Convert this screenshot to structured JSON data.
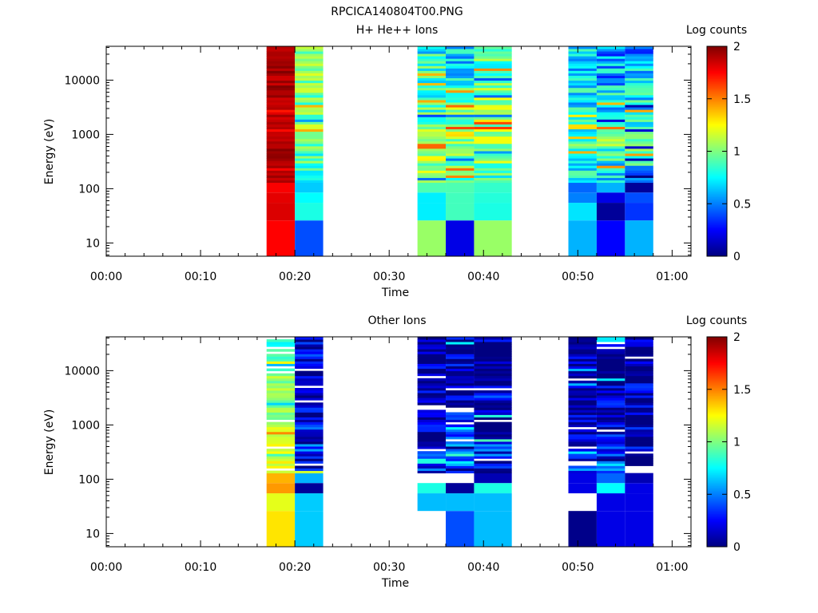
{
  "figure_title": "RPCICA140804T00.PNG",
  "chart_data": [
    {
      "type": "heatmap",
      "title": "H+ He++ Ions",
      "xlabel": "Time",
      "ylabel": "Energy (eV)",
      "y_scale": "log",
      "ylim": [
        5.7,
        42000
      ],
      "xlim_minutes": [
        0,
        62
      ],
      "x_tick_labels": [
        "00:00",
        "00:10",
        "00:20",
        "00:30",
        "00:40",
        "00:50",
        "01:00"
      ],
      "y_tick_labels": [
        "10",
        "100",
        "1000",
        "10000"
      ],
      "colorbar": {
        "label": "Log counts",
        "range": [
          0,
          2
        ],
        "tick_labels": [
          "0",
          "0.5",
          "1",
          "1.5",
          "2"
        ]
      },
      "columns": [
        {
          "t_start": "00:17",
          "t_end": "00:20",
          "low_bins": [
            [
              5.7,
              26,
              1.75
            ],
            [
              26,
              55,
              1.82
            ],
            [
              55,
              85,
              1.8
            ],
            [
              85,
              130,
              1.76
            ]
          ],
          "profile": [
            1.9,
            1.9,
            1.95,
            1.88,
            1.9,
            1.85,
            1.92,
            1.88,
            1.95,
            1.9
          ],
          "variation": 0.07
        },
        {
          "t_start": "00:20",
          "t_end": "00:23",
          "low_bins": [
            [
              5.7,
              26,
              0.4
            ],
            [
              26,
              55,
              0.8
            ],
            [
              55,
              85,
              0.75
            ],
            [
              85,
              130,
              0.65
            ]
          ],
          "profile": [
            0.6,
            0.9,
            0.9,
            0.95,
            1.0,
            0.95,
            1.0,
            1.05,
            1.0,
            0.95
          ],
          "variation": 0.2
        },
        {
          "t_start": "00:33",
          "t_end": "00:36",
          "low_bins": [
            [
              5.7,
              26,
              1.05
            ],
            [
              26,
              55,
              0.72
            ],
            [
              55,
              85,
              0.72
            ],
            [
              85,
              130,
              0.9
            ]
          ],
          "profile": [
            1.0,
            1.05,
            1.0,
            1.0,
            0.95,
            0.9,
            0.8,
            0.85,
            0.8,
            0.75
          ],
          "variation": 0.25
        },
        {
          "t_start": "00:36",
          "t_end": "00:39",
          "low_bins": [
            [
              5.7,
              26,
              0.2
            ],
            [
              26,
              55,
              0.88
            ],
            [
              55,
              85,
              0.88
            ],
            [
              85,
              130,
              0.9
            ]
          ],
          "profile": [
            0.9,
            1.0,
            1.05,
            1.1,
            1.05,
            1.0,
            0.9,
            0.75,
            0.7,
            0.7
          ],
          "variation": 0.25
        },
        {
          "t_start": "00:39",
          "t_end": "00:43",
          "low_bins": [
            [
              5.7,
              26,
              1.05
            ],
            [
              26,
              55,
              0.8
            ],
            [
              55,
              85,
              0.82
            ],
            [
              85,
              130,
              0.85
            ]
          ],
          "profile": [
            0.8,
            1.0,
            1.1,
            1.15,
            1.05,
            1.0,
            1.0,
            0.95,
            0.9,
            0.85
          ],
          "variation": 0.25
        },
        {
          "t_start": "00:49",
          "t_end": "00:52",
          "low_bins": [
            [
              5.7,
              26,
              0.6
            ],
            [
              26,
              55,
              0.7
            ],
            [
              55,
              85,
              0.5
            ],
            [
              85,
              130,
              0.45
            ]
          ],
          "profile": [
            0.6,
            0.8,
            0.85,
            0.8,
            0.75,
            0.7,
            0.75,
            0.7,
            0.7,
            0.65
          ],
          "variation": 0.25
        },
        {
          "t_start": "00:52",
          "t_end": "00:55",
          "low_bins": [
            [
              5.7,
              26,
              0.25
            ],
            [
              26,
              55,
              0.05
            ],
            [
              55,
              85,
              0.2
            ],
            [
              85,
              130,
              0.6
            ]
          ],
          "profile": [
            0.7,
            0.8,
            0.9,
            0.9,
            0.85,
            0.75,
            0.65,
            0.6,
            0.55,
            0.5
          ],
          "variation": 0.3
        },
        {
          "t_start": "00:55",
          "t_end": "00:58",
          "low_bins": [
            [
              5.7,
              26,
              0.6
            ],
            [
              26,
              55,
              0.35
            ],
            [
              55,
              85,
              0.4
            ],
            [
              85,
              130,
              0.05
            ]
          ],
          "profile": [
            0.3,
            0.7,
            0.8,
            0.85,
            0.8,
            0.75,
            0.7,
            0.65,
            0.6,
            0.55
          ],
          "variation": 0.3
        }
      ]
    },
    {
      "type": "heatmap",
      "title": "Other Ions",
      "xlabel": "Time",
      "ylabel": "Energy (eV)",
      "y_scale": "log",
      "ylim": [
        5.7,
        42000
      ],
      "xlim_minutes": [
        0,
        62
      ],
      "x_tick_labels": [
        "00:00",
        "00:10",
        "00:20",
        "00:30",
        "00:40",
        "00:50",
        "01:00"
      ],
      "y_tick_labels": [
        "10",
        "100",
        "1000",
        "10000"
      ],
      "colorbar": {
        "label": "Log counts",
        "range": [
          0,
          2
        ],
        "tick_labels": [
          "0",
          "0.5",
          "1",
          "1.5",
          "2"
        ]
      },
      "columns": [
        {
          "t_start": "00:17",
          "t_end": "00:20",
          "low_bins": [
            [
              5.7,
              26,
              1.3
            ],
            [
              26,
              55,
              1.2
            ],
            [
              55,
              85,
              1.45
            ],
            [
              85,
              130,
              1.4
            ]
          ],
          "profile": [
            1.3,
            1.2,
            1.25,
            1.1,
            1.0,
            1.0,
            1.05,
            0.95,
            0.9,
            0.8
          ],
          "variation": 0.15
        },
        {
          "t_start": "00:20",
          "t_end": "00:23",
          "low_bins": [
            [
              5.7,
              26,
              0.65
            ],
            [
              26,
              55,
              0.65
            ],
            [
              55,
              85,
              0.05
            ],
            [
              85,
              130,
              0.6
            ]
          ],
          "profile": [
            0.5,
            0.4,
            0.3,
            0.25,
            0.15,
            0.1,
            0.1,
            0.1,
            0.15,
            0.1
          ],
          "variation": 0.3
        },
        {
          "t_start": "00:33",
          "t_end": "00:36",
          "low_bins": [
            [
              5.7,
              26,
              null
            ],
            [
              26,
              55,
              0.62
            ],
            [
              55,
              85,
              0.8
            ],
            [
              85,
              130,
              null
            ]
          ],
          "profile": [
            0.3,
            0.25,
            0.15,
            0.1,
            0.05,
            0.1,
            0.1,
            0.1,
            0.05,
            0.05
          ],
          "variation": 0.25
        },
        {
          "t_start": "00:36",
          "t_end": "00:39",
          "low_bins": [
            [
              5.7,
              26,
              0.4
            ],
            [
              26,
              55,
              0.62
            ],
            [
              55,
              85,
              0.05
            ],
            [
              85,
              130,
              null
            ]
          ],
          "profile": [
            0.6,
            0.6,
            0.55,
            0.45,
            0.3,
            0.2,
            0.1,
            0.1,
            0.1,
            0.05
          ],
          "variation": 0.3
        },
        {
          "t_start": "00:39",
          "t_end": "00:43",
          "low_bins": [
            [
              5.7,
              26,
              0.62
            ],
            [
              26,
              55,
              0.62
            ],
            [
              55,
              85,
              0.8
            ],
            [
              85,
              130,
              0.1
            ]
          ],
          "profile": [
            0.1,
            0.3,
            0.25,
            0.2,
            0.15,
            0.15,
            0.1,
            0.1,
            0.05,
            0.05
          ],
          "variation": 0.3
        },
        {
          "t_start": "00:49",
          "t_end": "00:52",
          "low_bins": [
            [
              5.7,
              26,
              0.02
            ],
            [
              26,
              55,
              null
            ],
            [
              55,
              85,
              0.2
            ],
            [
              85,
              130,
              0.2
            ]
          ],
          "profile": [
            0.4,
            0.2,
            0.1,
            0.05,
            0.1,
            0.1,
            0.05,
            0.05,
            0.05,
            0.05
          ],
          "variation": 0.25
        },
        {
          "t_start": "00:52",
          "t_end": "00:55",
          "low_bins": [
            [
              5.7,
              26,
              0.2
            ],
            [
              26,
              55,
              0.2
            ],
            [
              55,
              85,
              0.75
            ],
            [
              85,
              130,
              0.45
            ]
          ],
          "profile": [
            0.6,
            0.3,
            0.2,
            0.15,
            0.1,
            0.1,
            0.05,
            0.05,
            0.05,
            0.05
          ],
          "variation": 0.3
        },
        {
          "t_start": "00:55",
          "t_end": "00:58",
          "low_bins": [
            [
              5.7,
              26,
              0.2
            ],
            [
              26,
              55,
              0.2
            ],
            [
              55,
              85,
              0.2
            ],
            [
              85,
              130,
              0.1
            ]
          ],
          "profile": [
            null,
            0.1,
            0.2,
            0.15,
            0.1,
            0.1,
            0.05,
            0.05,
            0.05,
            0.05
          ],
          "variation": 0.3
        }
      ]
    }
  ]
}
